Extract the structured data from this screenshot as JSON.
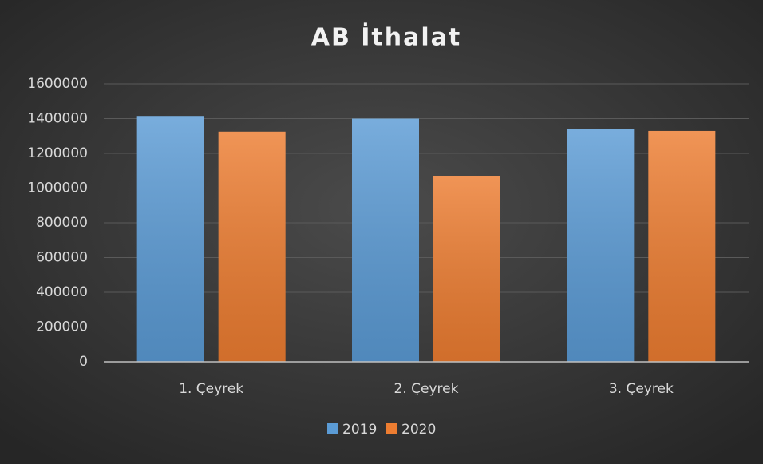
{
  "chart_data": {
    "type": "bar",
    "title": "AB İthalat",
    "categories": [
      "1. Çeyrek",
      "2. Çeyrek",
      "3. Çeyrek"
    ],
    "series": [
      {
        "name": "2019",
        "color": "#5b9bd5",
        "values": [
          1415000,
          1400000,
          1338000
        ]
      },
      {
        "name": "2020",
        "color": "#ed7d31",
        "values": [
          1325000,
          1070000,
          1329000
        ]
      }
    ],
    "ylim": [
      0,
      1600000
    ],
    "yticks": [
      0,
      200000,
      400000,
      600000,
      800000,
      1000000,
      1200000,
      1400000,
      1600000
    ],
    "grid": true,
    "legend": "bottom"
  }
}
